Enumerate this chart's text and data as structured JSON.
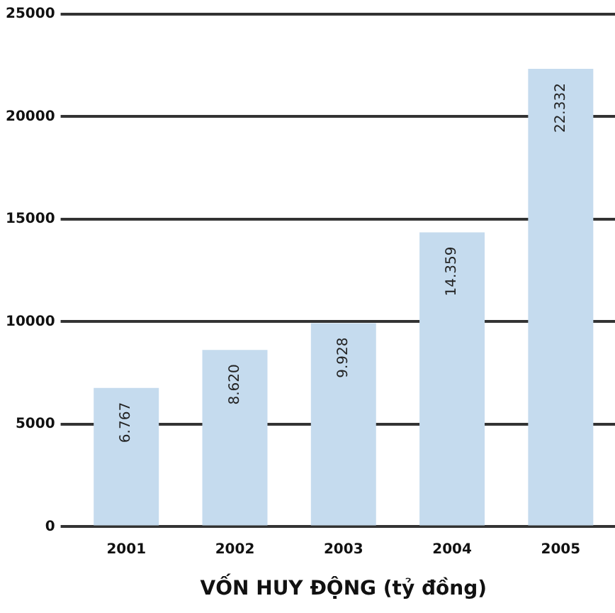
{
  "chart_data": {
    "type": "bar",
    "xlabel": "VỐN HUY ĐỘNG (tỷ đồng)",
    "categories": [
      "2001",
      "2002",
      "2003",
      "2004",
      "2005"
    ],
    "values": [
      6767,
      8620,
      9928,
      14359,
      22332
    ],
    "value_labels": [
      "6.767",
      "8.620",
      "9.928",
      "14.359",
      "22.332"
    ],
    "color": "#c5dbee",
    "ylim": [
      0,
      25000
    ],
    "yticks": [
      0,
      5000,
      10000,
      15000,
      20000,
      25000
    ],
    "grid": "y",
    "legend": false
  }
}
